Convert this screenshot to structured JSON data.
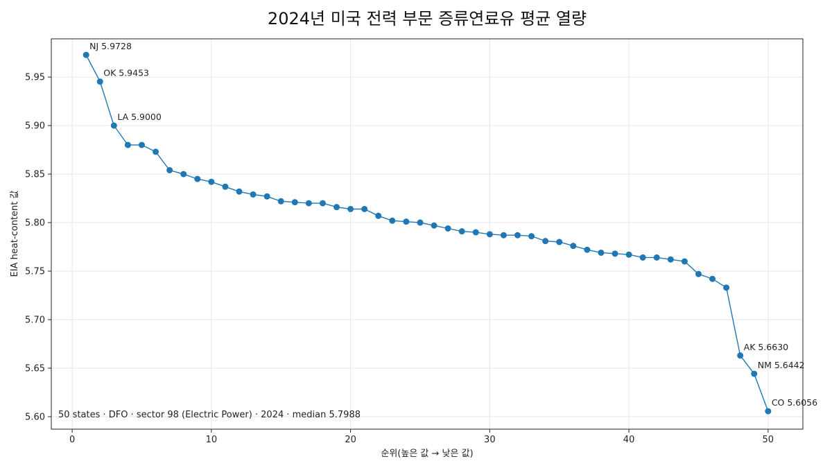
{
  "chart_data": {
    "type": "line",
    "title": "2024년 미국 전력 부문 증류연료유 평균 열량",
    "xlabel": "순위(높은 값 → 낮은 값)",
    "ylabel": "EIA heat-content 값",
    "xlim": [
      -1.5,
      52.5
    ],
    "ylim": [
      5.5871,
      5.9894
    ],
    "x_ticks": [
      0,
      10,
      20,
      30,
      40,
      50
    ],
    "y_ticks": [
      5.6,
      5.65,
      5.7,
      5.75,
      5.8,
      5.85,
      5.9,
      5.95
    ],
    "y_tick_labels": [
      "5.60",
      "5.65",
      "5.70",
      "5.75",
      "5.80",
      "5.85",
      "5.90",
      "5.95"
    ],
    "grid": true,
    "color": "#1f77b4",
    "x": [
      1,
      2,
      3,
      4,
      5,
      6,
      7,
      8,
      9,
      10,
      11,
      12,
      13,
      14,
      15,
      16,
      17,
      18,
      19,
      20,
      21,
      22,
      23,
      24,
      25,
      26,
      27,
      28,
      29,
      30,
      31,
      32,
      33,
      34,
      35,
      36,
      37,
      38,
      39,
      40,
      41,
      42,
      43,
      44,
      45,
      46,
      47,
      48,
      49,
      50
    ],
    "y": [
      5.9728,
      5.9453,
      5.9,
      5.88,
      5.88,
      5.873,
      5.854,
      5.85,
      5.845,
      5.842,
      5.837,
      5.832,
      5.829,
      5.827,
      5.822,
      5.821,
      5.82,
      5.82,
      5.816,
      5.814,
      5.814,
      5.807,
      5.802,
      5.801,
      5.8,
      5.797,
      5.794,
      5.791,
      5.79,
      5.788,
      5.787,
      5.787,
      5.786,
      5.781,
      5.78,
      5.776,
      5.772,
      5.769,
      5.768,
      5.767,
      5.764,
      5.764,
      5.762,
      5.76,
      5.747,
      5.742,
      5.733,
      5.663,
      5.6442,
      5.6056
    ],
    "annotations": [
      {
        "index": 0,
        "text": "NJ 5.9728"
      },
      {
        "index": 1,
        "text": "OK 5.9453"
      },
      {
        "index": 2,
        "text": "LA 5.9000"
      },
      {
        "index": 47,
        "text": "AK 5.6630"
      },
      {
        "index": 48,
        "text": "NM 5.6442"
      },
      {
        "index": 49,
        "text": "CO 5.6056"
      }
    ],
    "footnote": "50 states · DFO · sector 98 (Electric Power) · 2024 · median 5.7988"
  }
}
